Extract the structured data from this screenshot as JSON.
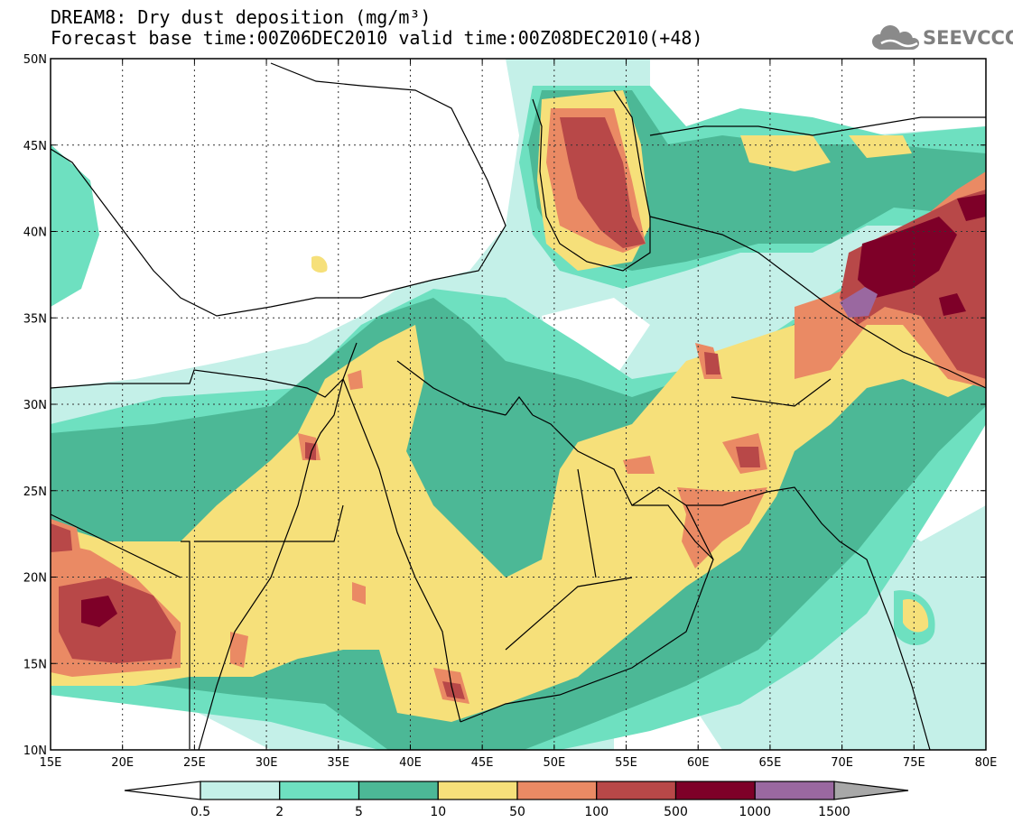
{
  "title": {
    "line1": "DREAM8: Dry dust deposition (mg/m³)",
    "line2": "Forecast base time:00Z06DEC2010 valid time:00Z08DEC2010(+48)"
  },
  "logo": {
    "text": "SEEVCCC",
    "icon": "cloud-icon"
  },
  "axes": {
    "lon_ticks": [
      "15E",
      "20E",
      "25E",
      "30E",
      "35E",
      "40E",
      "45E",
      "50E",
      "55E",
      "60E",
      "65E",
      "70E",
      "75E",
      "80E"
    ],
    "lat_ticks": [
      "50N",
      "45N",
      "40N",
      "35N",
      "30N",
      "25N",
      "20N",
      "15N",
      "10N"
    ],
    "lon_range": [
      15,
      80
    ],
    "lat_range": [
      10,
      50
    ]
  },
  "colorbar": {
    "labels": [
      "0.5",
      "2",
      "5",
      "10",
      "50",
      "100",
      "500",
      "1000",
      "1500"
    ],
    "colors": [
      "#ffffff",
      "#c4f0e8",
      "#6ee0c0",
      "#4cb896",
      "#f6e07a",
      "#ea8a64",
      "#b84848",
      "#7e0028",
      "#9a68a0",
      "#a8a8a8"
    ]
  }
}
